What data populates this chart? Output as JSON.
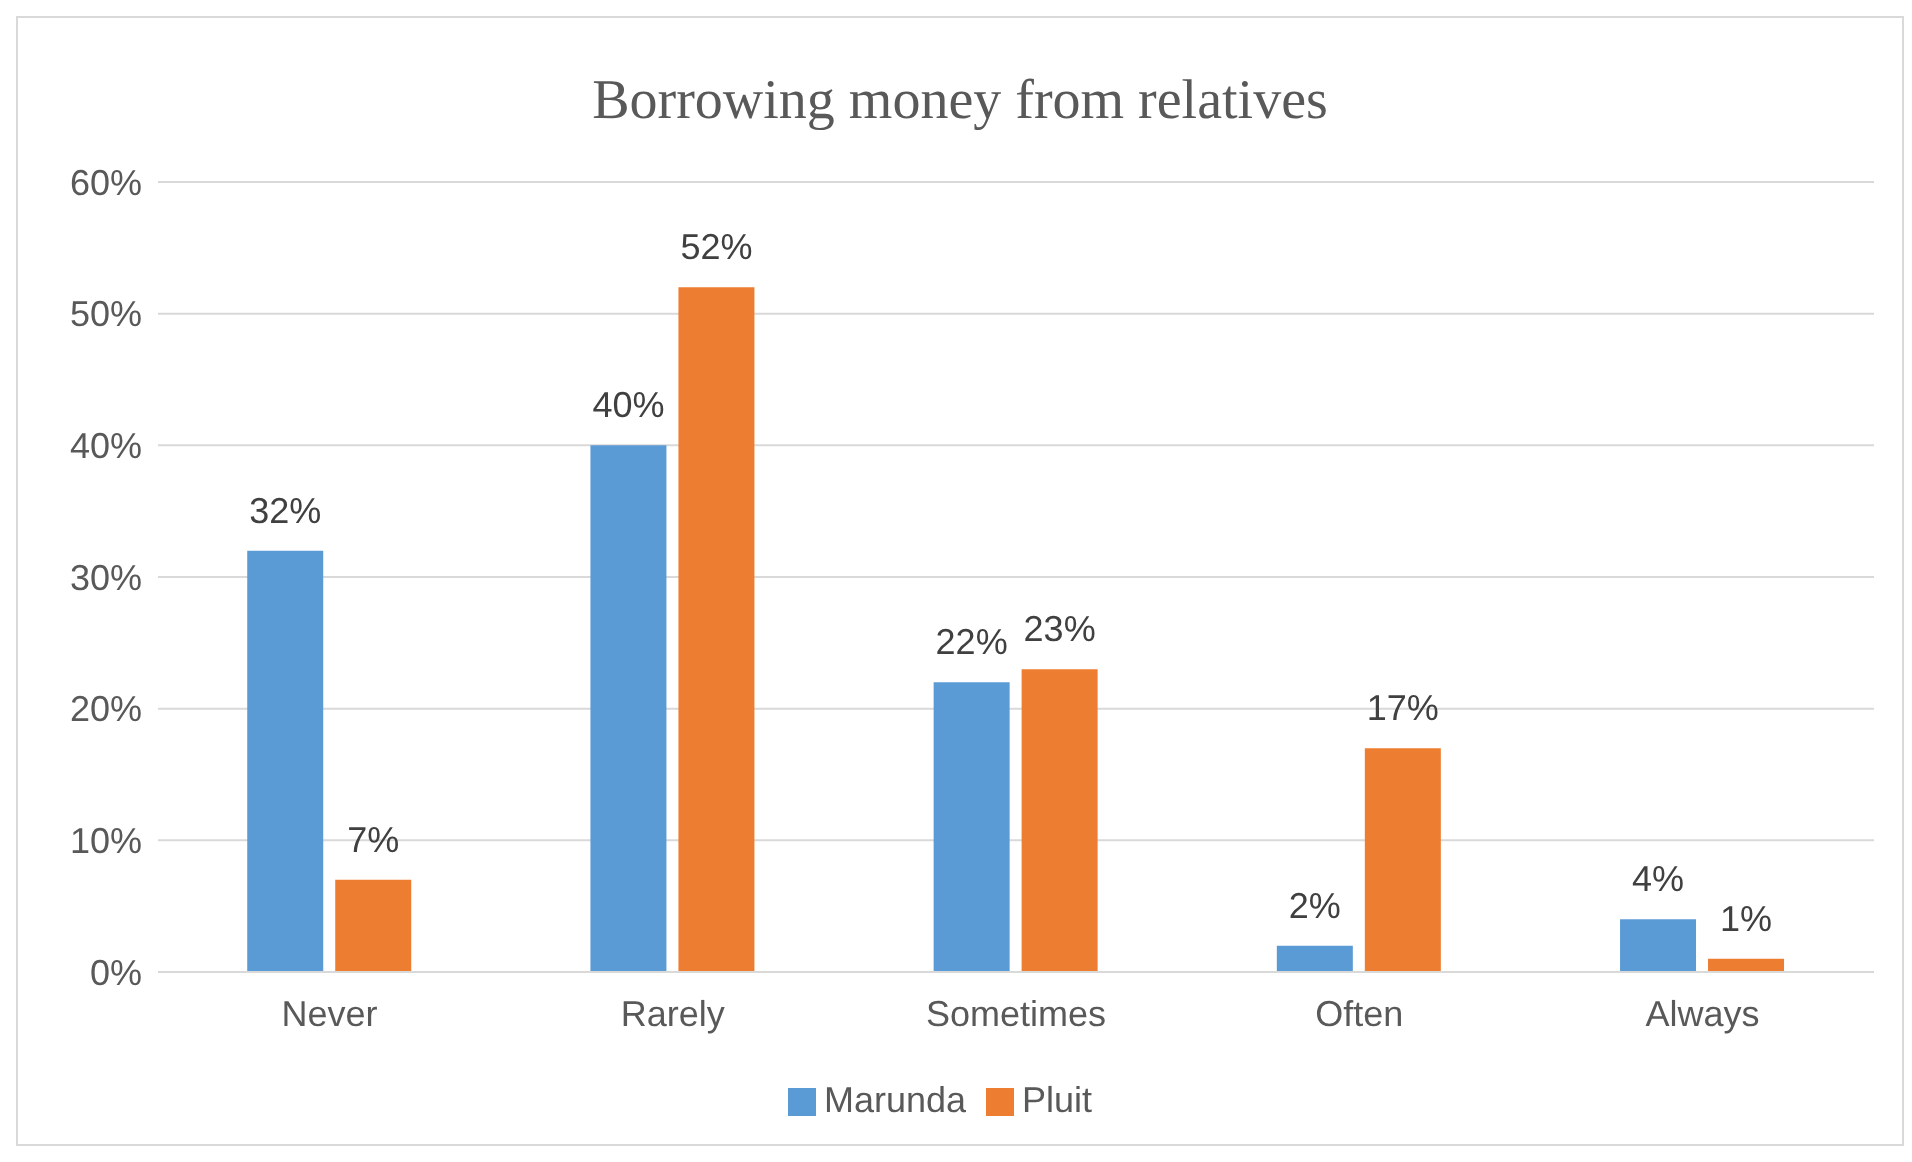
{
  "chart_data": {
    "type": "bar",
    "title": "Borrowing money from relatives",
    "categories": [
      "Never",
      "Rarely",
      "Sometimes",
      "Often",
      "Always"
    ],
    "series": [
      {
        "name": "Marunda",
        "color": "#5b9bd5",
        "values": [
          32,
          40,
          22,
          2,
          4
        ],
        "value_labels": [
          "32%",
          "40%",
          "22%",
          "2%",
          "4%"
        ]
      },
      {
        "name": "Pluit",
        "color": "#ed7d31",
        "values": [
          7,
          52,
          23,
          17,
          1
        ],
        "value_labels": [
          "7%",
          "52%",
          "23%",
          "17%",
          "1%"
        ]
      }
    ],
    "ylim": [
      0,
      60
    ],
    "yticks": [
      {
        "value": 0,
        "label": "0%"
      },
      {
        "value": 10,
        "label": "10%"
      },
      {
        "value": 20,
        "label": "20%"
      },
      {
        "value": 30,
        "label": "30%"
      },
      {
        "value": 40,
        "label": "40%"
      },
      {
        "value": 50,
        "label": "50%"
      },
      {
        "value": 60,
        "label": "60%"
      }
    ],
    "grid": "y",
    "legend": "bottom"
  }
}
